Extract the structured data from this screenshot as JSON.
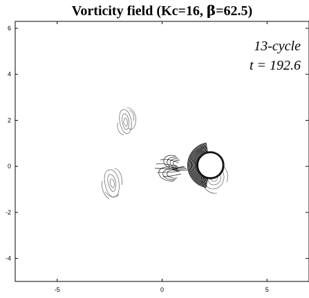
{
  "chart_data": {
    "type": "contour",
    "title": {
      "prefix": "Vorticity field (Kc=16, ",
      "beta_symbol": "β",
      "suffix": "=62.5)"
    },
    "xlim": [
      -7,
      7
    ],
    "ylim": [
      -5,
      6.3
    ],
    "xticks": [
      -5,
      0,
      5
    ],
    "yticks": [
      -4,
      -2,
      0,
      2,
      4,
      6
    ],
    "xtick_labels": [
      "-5",
      "0",
      "5"
    ],
    "ytick_labels": [
      "-4",
      "-2",
      "0",
      "2",
      "4",
      "6"
    ],
    "annotations": [
      "13-cycle",
      "t = 192.6"
    ],
    "cylinder": {
      "center": [
        2.3,
        0.05
      ],
      "radius": 0.6
    },
    "vortices": [
      {
        "name": "upper-left",
        "center": [
          -1.7,
          1.8
        ]
      },
      {
        "name": "lower-left",
        "center": [
          -2.4,
          -0.9
        ]
      },
      {
        "name": "right",
        "center": [
          3.5,
          -0.7
        ]
      },
      {
        "name": "attached",
        "center": [
          1.0,
          0.0
        ]
      }
    ]
  }
}
